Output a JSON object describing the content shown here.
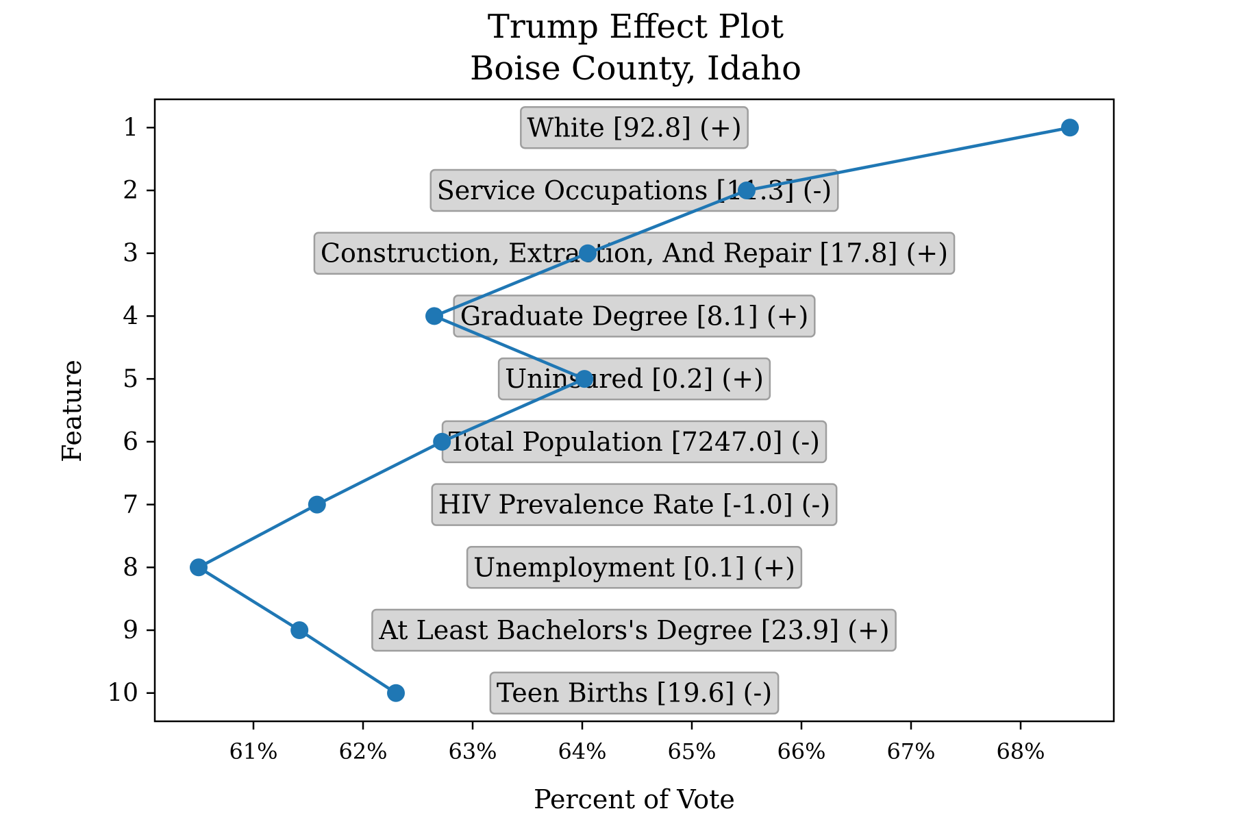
{
  "chart_data": {
    "type": "line",
    "title": "Trump Effect Plot",
    "subtitle": "Boise County, Idaho",
    "xlabel": "Percent of Vote",
    "ylabel": "Feature",
    "xlim": [
      60.1,
      68.85
    ],
    "ylim": [
      10.45,
      0.55
    ],
    "x_ticks": [
      61,
      62,
      63,
      64,
      65,
      66,
      67,
      68
    ],
    "x_tick_labels": [
      "61%",
      "62%",
      "63%",
      "64%",
      "65%",
      "66%",
      "67%",
      "68%"
    ],
    "y_ticks": [
      1,
      2,
      3,
      4,
      5,
      6,
      7,
      8,
      9,
      10
    ],
    "y_tick_labels": [
      "1",
      "2",
      "3",
      "4",
      "5",
      "6",
      "7",
      "8",
      "9",
      "10"
    ],
    "grid": false,
    "series": [
      {
        "color": "#1f77b4",
        "points": [
          {
            "feature": 1,
            "x": 68.45
          },
          {
            "feature": 2,
            "x": 65.5
          },
          {
            "feature": 3,
            "x": 64.05
          },
          {
            "feature": 4,
            "x": 62.65
          },
          {
            "feature": 5,
            "x": 64.02
          },
          {
            "feature": 6,
            "x": 62.72
          },
          {
            "feature": 7,
            "x": 61.58
          },
          {
            "feature": 8,
            "x": 60.5
          },
          {
            "feature": 9,
            "x": 61.42
          },
          {
            "feature": 10,
            "x": 62.3
          }
        ]
      }
    ],
    "annotations": [
      {
        "feature": 1,
        "text": "White [92.8] (+)"
      },
      {
        "feature": 2,
        "text": "Service Occupations [11.3] (-)"
      },
      {
        "feature": 3,
        "text": "Construction, Extraction, And Repair [17.8] (+)"
      },
      {
        "feature": 4,
        "text": "Graduate Degree [8.1] (+)"
      },
      {
        "feature": 5,
        "text": "Uninsured [0.2] (+)"
      },
      {
        "feature": 6,
        "text": "Total Population [7247.0] (-)"
      },
      {
        "feature": 7,
        "text": "HIV Prevalence Rate [-1.0] (-)"
      },
      {
        "feature": 8,
        "text": "Unemployment [0.1] (+)"
      },
      {
        "feature": 9,
        "text": "At Least Bachelors's Degree [23.9] (+)"
      },
      {
        "feature": 10,
        "text": "Teen Births [19.6] (-)"
      }
    ]
  }
}
